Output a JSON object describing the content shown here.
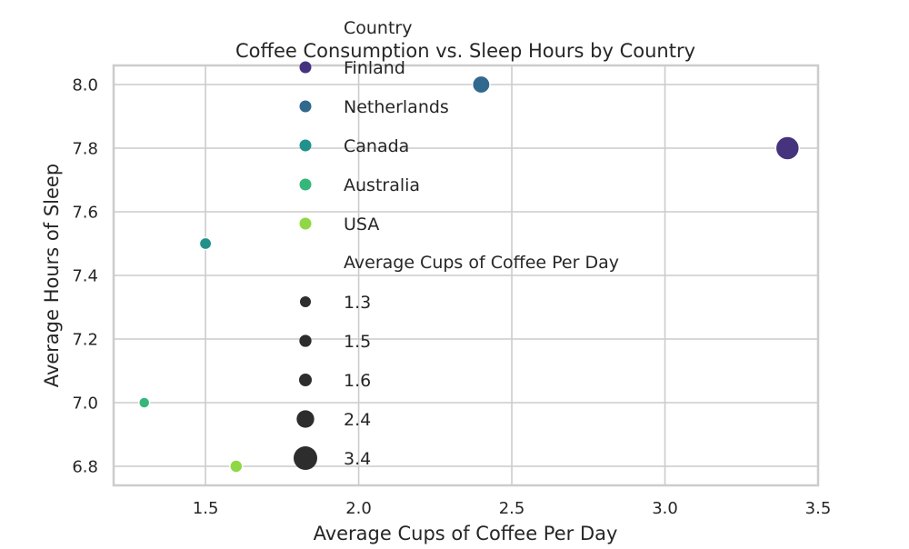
{
  "chart_data": {
    "type": "scatter",
    "title": "Coffee Consumption vs. Sleep Hours by Country",
    "xlabel": "Average Cups of Coffee Per Day",
    "ylabel": "Average Hours of Sleep",
    "xlim": [
      1.2,
      3.5
    ],
    "ylim": [
      6.74,
      8.06
    ],
    "grid": true,
    "x_ticks": [
      1.5,
      2.0,
      2.5,
      3.0,
      3.5
    ],
    "x_tick_labels": [
      "1.5",
      "2.0",
      "2.5",
      "3.0",
      "3.5"
    ],
    "y_ticks": [
      6.8,
      7.0,
      7.2,
      7.4,
      7.6,
      7.8,
      8.0
    ],
    "y_tick_labels": [
      "6.8",
      "7.0",
      "7.2",
      "7.4",
      "7.6",
      "7.8",
      "8.0"
    ],
    "points": [
      {
        "country": "Finland",
        "x": 3.4,
        "y": 7.8,
        "color": "#45337e"
      },
      {
        "country": "Netherlands",
        "x": 2.4,
        "y": 8.0,
        "color": "#31688e"
      },
      {
        "country": "Canada",
        "x": 1.5,
        "y": 7.5,
        "color": "#21918c"
      },
      {
        "country": "Australia",
        "x": 1.3,
        "y": 7.0,
        "color": "#35b779"
      },
      {
        "country": "USA",
        "x": 1.6,
        "y": 6.8,
        "color": "#8fd744"
      }
    ],
    "legend": {
      "placement": "upper-center",
      "hue_title": "Country",
      "hue_entries": [
        {
          "label": "Finland",
          "color": "#45337e"
        },
        {
          "label": "Netherlands",
          "color": "#31688e"
        },
        {
          "label": "Canada",
          "color": "#21918c"
        },
        {
          "label": "Australia",
          "color": "#35b779"
        },
        {
          "label": "USA",
          "color": "#8fd744"
        }
      ],
      "size_title": "Average Cups of Coffee Per Day",
      "size_entries": [
        {
          "label": "1.3",
          "value": 1.3
        },
        {
          "label": "1.5",
          "value": 1.5
        },
        {
          "label": "1.6",
          "value": 1.6
        },
        {
          "label": "2.4",
          "value": 2.4
        },
        {
          "label": "3.4",
          "value": 3.4
        }
      ],
      "size_marker_color": "#2d2d2d"
    }
  }
}
